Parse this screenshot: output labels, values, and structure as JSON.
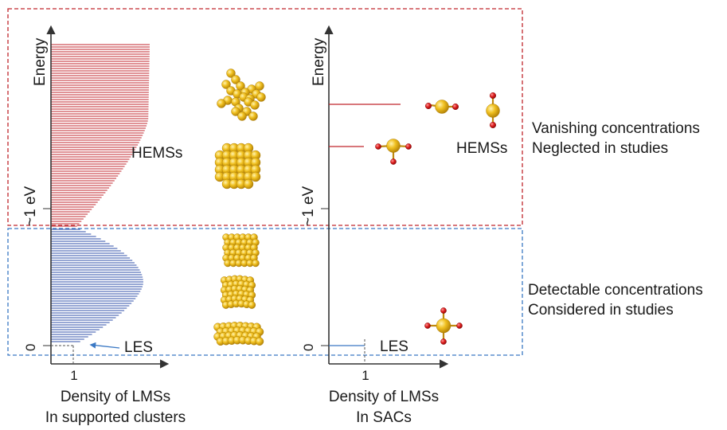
{
  "left_panel": {
    "y_axis_label": "Energy",
    "y_tick_ev": "~1 eV",
    "y_tick_zero": "0",
    "x_tick": "1",
    "x_axis_label_line1": "Density of LMSs",
    "x_axis_label_line2": "In supported clusters",
    "hems_label": "HEMSs",
    "les_label": "LES"
  },
  "right_panel": {
    "y_axis_label": "Energy",
    "y_tick_ev": "~1 eV",
    "y_tick_zero": "0",
    "x_tick": "1",
    "x_axis_label_line1": "Density of LMSs",
    "x_axis_label_line2": "In SACs",
    "hems_label": "HEMSs",
    "les_label": "LES"
  },
  "regions": {
    "upper": {
      "line1": "Vanishing concentrations",
      "line2": "Neglected in studies",
      "color": "#c0262c"
    },
    "lower": {
      "line1": "Detectable concentrations",
      "line2": "Considered in studies",
      "color": "#3a78c4"
    }
  },
  "colors": {
    "hems_lines": "#c0262c",
    "les_lines": "#2f4fa8",
    "metal_atom": "#f0c020",
    "oxygen_atom": "#dd1c1c",
    "axis": "#333333"
  },
  "icons": {
    "cluster_star": "gold-cluster-icon",
    "cluster_plus": "gold-cluster-icon",
    "cluster_cube": "gold-cluster-icon",
    "cluster_cylinder": "gold-cluster-icon",
    "cluster_raft": "gold-cluster-icon",
    "sac_linear": "single-atom-oxygen-icon",
    "sac_vertical": "single-atom-oxygen-icon",
    "sac_tri": "single-atom-oxygen-icon",
    "sac_cross": "single-atom-oxygen-icon"
  }
}
